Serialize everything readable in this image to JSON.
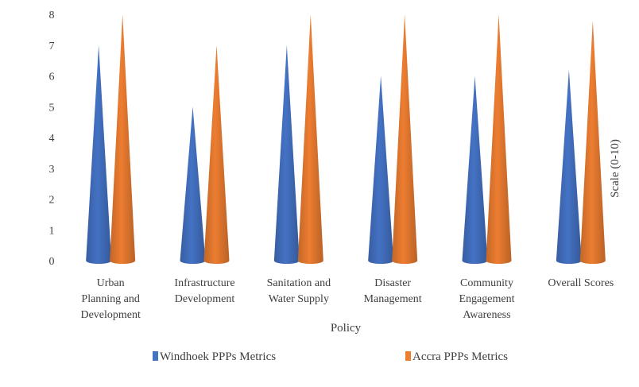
{
  "chart_data": {
    "type": "bar",
    "style": "3d-cone",
    "categories": [
      [
        "Urban",
        "Planning and",
        "Development"
      ],
      [
        "Infrastructure",
        "Development"
      ],
      [
        "Sanitation and",
        "Water Supply"
      ],
      [
        "Disaster",
        "Management"
      ],
      [
        "Community",
        "Engagement",
        "Awareness"
      ],
      [
        "Overall Scores"
      ]
    ],
    "series": [
      {
        "name": "Windhoek PPPs Metrics",
        "color": "#4472C4",
        "values": [
          7,
          5,
          7,
          6,
          6,
          6.2
        ]
      },
      {
        "name": "Accra PPPs Metrics",
        "color": "#ED7D31",
        "values": [
          8,
          7,
          8,
          8,
          8,
          7.8
        ]
      }
    ],
    "xlabel": "Policy",
    "ylabel": "Scale (0-10)",
    "ylim": [
      0,
      8
    ],
    "yticks": [
      0,
      1,
      2,
      3,
      4,
      5,
      6,
      7,
      8
    ],
    "grid": false,
    "legend_position": "bottom"
  }
}
